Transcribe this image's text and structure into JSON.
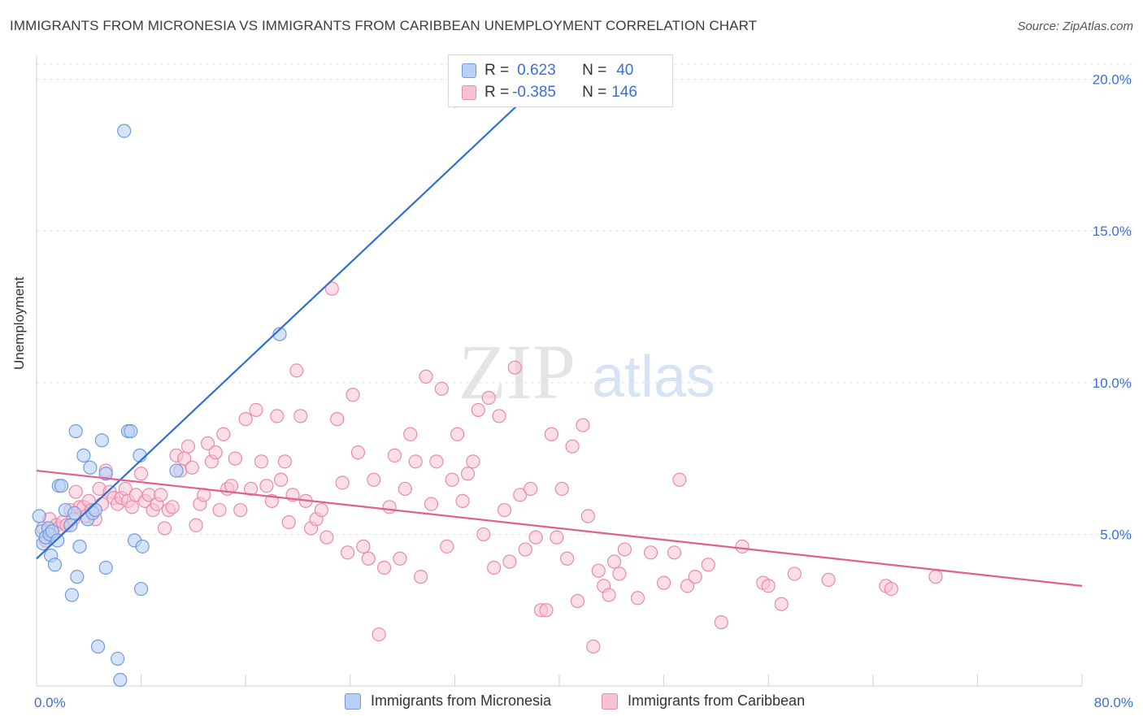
{
  "header": {
    "title": "IMMIGRANTS FROM MICRONESIA VS IMMIGRANTS FROM CARIBBEAN UNEMPLOYMENT CORRELATION CHART",
    "source": "Source: ZipAtlas.com"
  },
  "watermark": {
    "zip": "ZIP",
    "atlas": "atlas"
  },
  "legend": {
    "rows": [
      {
        "r_label": "R =",
        "r_value": "0.623",
        "n_label": "N =",
        "n_value": "40"
      },
      {
        "r_label": "R =",
        "r_value": "-0.385",
        "n_label": "N =",
        "n_value": "146"
      }
    ]
  },
  "bottom_legend": {
    "micronesia": "Immigrants from Micronesia",
    "caribbean": "Immigrants from Caribbean"
  },
  "colors": {
    "micronesia_fill": "#b8d0f5",
    "micronesia_stroke": "#6f9ae0",
    "micronesia_line": "#2f6fd1",
    "caribbean_fill": "#f7c3d4",
    "caribbean_stroke": "#e88aa9",
    "caribbean_line": "#e0608a",
    "axis_text": "#3a6fd8",
    "grid": "#e3e3e3"
  },
  "chart_data": {
    "type": "scatter",
    "title": "IMMIGRANTS FROM MICRONESIA VS IMMIGRANTS FROM CARIBBEAN UNEMPLOYMENT CORRELATION CHART",
    "xlabel": "",
    "ylabel": "Unemployment",
    "xlim": [
      0,
      80
    ],
    "ylim": [
      0,
      20.5
    ],
    "x_tick_labels": [
      "0.0%",
      "80.0%"
    ],
    "y_ticks": [
      5,
      10,
      15,
      20
    ],
    "y_tick_labels": [
      "5.0%",
      "10.0%",
      "15.0%",
      "20.0%"
    ],
    "grid": true,
    "legend_position": "top-center",
    "series": [
      {
        "name": "Immigrants from Micronesia",
        "r": 0.623,
        "n": 40,
        "trend": {
          "x": [
            0,
            38.9
          ],
          "y": [
            4.2,
            20.0
          ]
        },
        "points": [
          [
            0.2,
            5.6
          ],
          [
            0.4,
            5.1
          ],
          [
            0.5,
            4.7
          ],
          [
            0.7,
            4.9
          ],
          [
            0.9,
            5.2
          ],
          [
            1.0,
            5.0
          ],
          [
            1.1,
            4.3
          ],
          [
            1.2,
            5.1
          ],
          [
            1.4,
            4.0
          ],
          [
            1.6,
            4.8
          ],
          [
            1.7,
            6.6
          ],
          [
            1.9,
            6.6
          ],
          [
            2.2,
            5.8
          ],
          [
            2.6,
            5.3
          ],
          [
            2.7,
            3.0
          ],
          [
            2.9,
            5.7
          ],
          [
            3.0,
            8.4
          ],
          [
            3.1,
            3.6
          ],
          [
            3.3,
            4.6
          ],
          [
            3.6,
            7.6
          ],
          [
            3.9,
            5.5
          ],
          [
            4.1,
            7.2
          ],
          [
            4.3,
            5.7
          ],
          [
            4.5,
            5.8
          ],
          [
            4.7,
            1.3
          ],
          [
            5.0,
            8.1
          ],
          [
            5.3,
            7.0
          ],
          [
            5.3,
            3.9
          ],
          [
            6.2,
            0.9
          ],
          [
            6.4,
            0.2
          ],
          [
            6.7,
            18.3
          ],
          [
            7.0,
            8.4
          ],
          [
            7.2,
            8.4
          ],
          [
            7.5,
            4.8
          ],
          [
            7.9,
            7.6
          ],
          [
            8.1,
            4.6
          ],
          [
            8.0,
            3.2
          ],
          [
            10.7,
            7.1
          ],
          [
            18.6,
            11.6
          ],
          [
            32.0,
            19.3
          ]
        ]
      },
      {
        "name": "Immigrants from Caribbean",
        "r": -0.385,
        "n": 146,
        "trend": {
          "x": [
            0,
            80
          ],
          "y": [
            7.1,
            3.3
          ]
        },
        "points": [
          [
            0.5,
            5.2
          ],
          [
            0.7,
            4.8
          ],
          [
            1.0,
            5.5
          ],
          [
            1.2,
            5.0
          ],
          [
            1.5,
            5.3
          ],
          [
            1.7,
            5.2
          ],
          [
            2.0,
            5.4
          ],
          [
            2.3,
            5.3
          ],
          [
            2.6,
            5.8
          ],
          [
            2.8,
            5.5
          ],
          [
            3.0,
            6.4
          ],
          [
            3.3,
            5.9
          ],
          [
            3.6,
            5.9
          ],
          [
            3.8,
            5.6
          ],
          [
            4.0,
            6.1
          ],
          [
            4.2,
            5.8
          ],
          [
            4.5,
            5.5
          ],
          [
            4.8,
            6.5
          ],
          [
            5.0,
            6.0
          ],
          [
            5.3,
            7.1
          ],
          [
            5.6,
            6.4
          ],
          [
            5.9,
            6.2
          ],
          [
            6.2,
            6.0
          ],
          [
            6.5,
            6.2
          ],
          [
            6.8,
            6.5
          ],
          [
            7.0,
            6.1
          ],
          [
            7.3,
            5.9
          ],
          [
            7.6,
            6.3
          ],
          [
            8.0,
            7.0
          ],
          [
            8.3,
            6.1
          ],
          [
            8.6,
            6.3
          ],
          [
            8.9,
            5.8
          ],
          [
            9.2,
            6.0
          ],
          [
            9.5,
            6.3
          ],
          [
            9.8,
            5.2
          ],
          [
            10.1,
            5.8
          ],
          [
            10.4,
            5.9
          ],
          [
            10.7,
            7.6
          ],
          [
            11.0,
            7.1
          ],
          [
            11.3,
            7.5
          ],
          [
            11.6,
            7.9
          ],
          [
            11.9,
            7.2
          ],
          [
            12.2,
            5.3
          ],
          [
            12.5,
            6.0
          ],
          [
            12.8,
            6.3
          ],
          [
            13.1,
            8.0
          ],
          [
            13.4,
            7.4
          ],
          [
            13.7,
            7.7
          ],
          [
            14.0,
            5.8
          ],
          [
            14.3,
            8.3
          ],
          [
            14.6,
            6.5
          ],
          [
            14.9,
            6.6
          ],
          [
            15.2,
            7.5
          ],
          [
            15.6,
            5.8
          ],
          [
            16.0,
            8.8
          ],
          [
            16.4,
            6.5
          ],
          [
            16.8,
            9.1
          ],
          [
            17.2,
            7.4
          ],
          [
            17.6,
            6.6
          ],
          [
            18.0,
            6.1
          ],
          [
            18.4,
            8.9
          ],
          [
            18.7,
            6.8
          ],
          [
            19.0,
            7.4
          ],
          [
            19.3,
            5.4
          ],
          [
            19.6,
            6.3
          ],
          [
            19.9,
            10.4
          ],
          [
            20.2,
            8.9
          ],
          [
            20.6,
            6.1
          ],
          [
            21.0,
            5.2
          ],
          [
            21.4,
            5.5
          ],
          [
            21.8,
            5.8
          ],
          [
            22.2,
            4.9
          ],
          [
            22.6,
            13.1
          ],
          [
            23.0,
            8.8
          ],
          [
            23.4,
            6.7
          ],
          [
            23.8,
            4.4
          ],
          [
            24.2,
            9.6
          ],
          [
            24.6,
            7.7
          ],
          [
            25.0,
            4.6
          ],
          [
            25.4,
            4.2
          ],
          [
            25.8,
            6.8
          ],
          [
            26.2,
            1.7
          ],
          [
            26.6,
            3.9
          ],
          [
            27.0,
            5.9
          ],
          [
            27.4,
            7.6
          ],
          [
            27.8,
            4.2
          ],
          [
            28.2,
            6.5
          ],
          [
            28.6,
            8.3
          ],
          [
            29.0,
            7.4
          ],
          [
            29.4,
            3.6
          ],
          [
            29.8,
            10.2
          ],
          [
            30.2,
            6.0
          ],
          [
            30.6,
            7.4
          ],
          [
            31.0,
            9.8
          ],
          [
            31.4,
            4.6
          ],
          [
            31.8,
            6.8
          ],
          [
            32.2,
            8.3
          ],
          [
            32.6,
            6.1
          ],
          [
            33.0,
            7.0
          ],
          [
            33.4,
            7.4
          ],
          [
            33.8,
            9.1
          ],
          [
            34.2,
            5.0
          ],
          [
            34.6,
            9.5
          ],
          [
            35.0,
            3.9
          ],
          [
            35.4,
            8.9
          ],
          [
            35.8,
            5.8
          ],
          [
            36.2,
            4.1
          ],
          [
            36.6,
            10.5
          ],
          [
            37.0,
            6.3
          ],
          [
            37.4,
            4.5
          ],
          [
            37.8,
            6.5
          ],
          [
            38.2,
            4.9
          ],
          [
            38.6,
            2.5
          ],
          [
            39.0,
            2.5
          ],
          [
            39.4,
            8.3
          ],
          [
            39.8,
            4.9
          ],
          [
            40.2,
            6.5
          ],
          [
            40.6,
            4.2
          ],
          [
            41.0,
            7.9
          ],
          [
            41.4,
            2.8
          ],
          [
            41.8,
            8.6
          ],
          [
            42.2,
            5.6
          ],
          [
            42.6,
            1.3
          ],
          [
            43.0,
            3.8
          ],
          [
            43.4,
            3.3
          ],
          [
            43.8,
            3.0
          ],
          [
            44.2,
            4.1
          ],
          [
            44.6,
            3.7
          ],
          [
            45.0,
            4.5
          ],
          [
            46.0,
            2.9
          ],
          [
            47.0,
            4.4
          ],
          [
            48.0,
            3.4
          ],
          [
            48.8,
            4.4
          ],
          [
            49.2,
            6.8
          ],
          [
            49.8,
            3.3
          ],
          [
            50.4,
            3.6
          ],
          [
            51.4,
            4.0
          ],
          [
            52.4,
            2.1
          ],
          [
            54.0,
            4.6
          ],
          [
            55.6,
            3.4
          ],
          [
            56.0,
            3.3
          ],
          [
            57.0,
            2.7
          ],
          [
            58.0,
            3.7
          ],
          [
            60.6,
            3.5
          ],
          [
            65.0,
            3.3
          ],
          [
            65.4,
            3.2
          ],
          [
            68.8,
            3.6
          ]
        ]
      }
    ]
  }
}
